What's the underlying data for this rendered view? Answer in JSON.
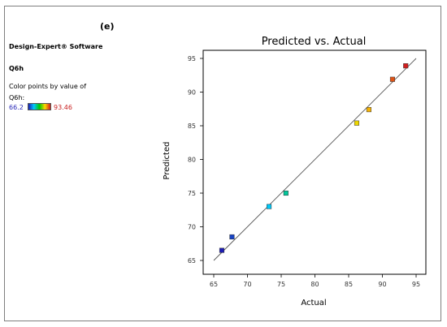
{
  "panel_label": "(e)",
  "software": "Design-Expert® Software",
  "response_name": "Q6h",
  "color_caption_line1": "Color points by value of",
  "color_caption_line2": "Q6h:",
  "color_min_label": "66.2",
  "color_max_label": "93.46",
  "colors": {
    "scale_low": "#1d1db4",
    "scale_high": "#d21e1e",
    "fit_line": "#555555"
  },
  "chart_data": {
    "type": "scatter",
    "title": "Predicted vs. Actual",
    "xlabel": "Actual",
    "ylabel": "Predicted",
    "xlim": [
      65,
      95
    ],
    "ylim": [
      65,
      95
    ],
    "xticks": [
      "65",
      "70",
      "75",
      "80",
      "85",
      "90",
      "95"
    ],
    "yticks": [
      "65",
      "70",
      "75",
      "80",
      "85",
      "90",
      "95"
    ],
    "color_range": [
      66.2,
      93.46
    ],
    "fit_line": [
      [
        65,
        65
      ],
      [
        95,
        95
      ]
    ],
    "points": [
      {
        "x": 66.2,
        "y": 66.5
      },
      {
        "x": 67.7,
        "y": 68.5
      },
      {
        "x": 73.2,
        "y": 73.0
      },
      {
        "x": 75.7,
        "y": 75.0
      },
      {
        "x": 86.2,
        "y": 85.4
      },
      {
        "x": 88.0,
        "y": 87.4
      },
      {
        "x": 91.5,
        "y": 91.9
      },
      {
        "x": 93.46,
        "y": 93.9
      }
    ]
  }
}
